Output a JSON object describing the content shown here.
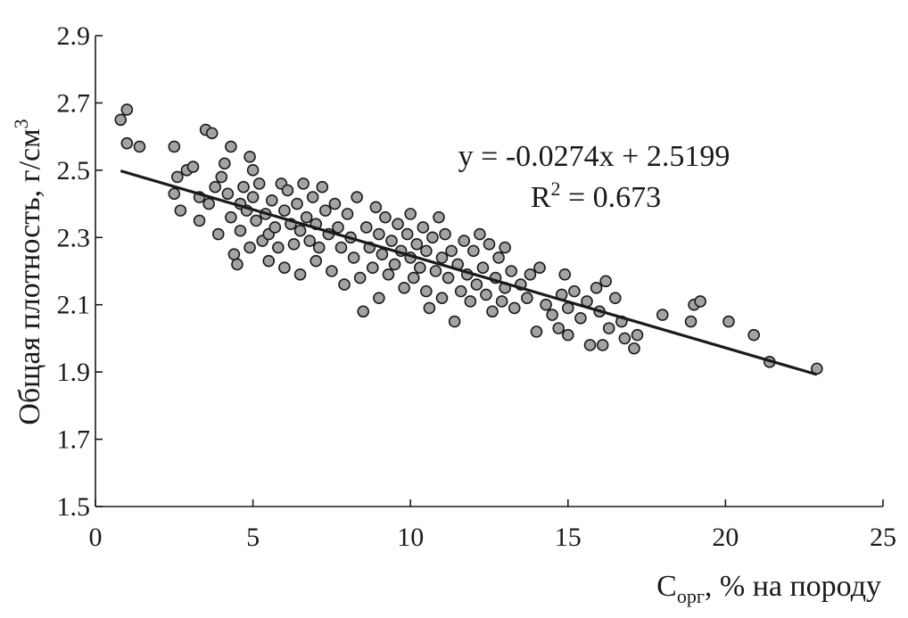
{
  "chart_data": {
    "type": "scatter",
    "xlabel_main": "C",
    "xlabel_sub": "орг",
    "xlabel_rest": ", % на породу",
    "ylabel": "Общая плотность, г/см",
    "ylabel_sup": "3",
    "xlim": [
      0,
      25
    ],
    "ylim": [
      1.5,
      2.9
    ],
    "xticks": [
      0,
      5,
      10,
      15,
      20,
      25
    ],
    "xtick_labels": [
      "0",
      "5",
      "10",
      "15",
      "20",
      "25"
    ],
    "yticks": [
      1.5,
      1.7,
      1.9,
      2.1,
      2.3,
      2.5,
      2.7,
      2.9
    ],
    "ytick_labels": [
      "1.5",
      "1.7",
      "1.9",
      "2.1",
      "2.3",
      "2.5",
      "2.7",
      "2.9"
    ],
    "trendline": {
      "slope": -0.0274,
      "intercept": 2.5199,
      "x_range": [
        0.8,
        22.9
      ]
    },
    "equation_label": "y = -0.0274x + 2.5199",
    "r2_prefix": "R",
    "r2_sup": "2",
    "r2_suffix": " = 0.673",
    "grid": false,
    "legend": "none",
    "marker_color": "#a3a3a3",
    "marker_edge_color": "#1a1a1a",
    "series": [
      {
        "points": [
          [
            0.8,
            2.65
          ],
          [
            1.0,
            2.68
          ],
          [
            1.0,
            2.58
          ],
          [
            1.4,
            2.57
          ],
          [
            2.5,
            2.57
          ],
          [
            2.5,
            2.43
          ],
          [
            2.6,
            2.48
          ],
          [
            2.7,
            2.38
          ],
          [
            2.9,
            2.5
          ],
          [
            3.1,
            2.51
          ],
          [
            3.3,
            2.42
          ],
          [
            3.3,
            2.35
          ],
          [
            3.5,
            2.62
          ],
          [
            3.6,
            2.4
          ],
          [
            3.7,
            2.61
          ],
          [
            3.8,
            2.45
          ],
          [
            3.9,
            2.31
          ],
          [
            4.0,
            2.48
          ],
          [
            4.1,
            2.52
          ],
          [
            4.2,
            2.43
          ],
          [
            4.3,
            2.57
          ],
          [
            4.3,
            2.36
          ],
          [
            4.4,
            2.25
          ],
          [
            4.5,
            2.22
          ],
          [
            4.6,
            2.4
          ],
          [
            4.6,
            2.32
          ],
          [
            4.7,
            2.45
          ],
          [
            4.8,
            2.38
          ],
          [
            4.9,
            2.54
          ],
          [
            4.9,
            2.27
          ],
          [
            5.0,
            2.5
          ],
          [
            5.0,
            2.42
          ],
          [
            5.1,
            2.35
          ],
          [
            5.2,
            2.46
          ],
          [
            5.3,
            2.29
          ],
          [
            5.4,
            2.37
          ],
          [
            5.5,
            2.31
          ],
          [
            5.5,
            2.23
          ],
          [
            5.6,
            2.41
          ],
          [
            5.7,
            2.33
          ],
          [
            5.8,
            2.27
          ],
          [
            5.9,
            2.46
          ],
          [
            6.0,
            2.38
          ],
          [
            6.0,
            2.21
          ],
          [
            6.1,
            2.44
          ],
          [
            6.2,
            2.34
          ],
          [
            6.3,
            2.28
          ],
          [
            6.4,
            2.4
          ],
          [
            6.5,
            2.32
          ],
          [
            6.5,
            2.19
          ],
          [
            6.6,
            2.46
          ],
          [
            6.7,
            2.36
          ],
          [
            6.8,
            2.29
          ],
          [
            6.9,
            2.42
          ],
          [
            7.0,
            2.34
          ],
          [
            7.0,
            2.23
          ],
          [
            7.1,
            2.27
          ],
          [
            7.2,
            2.45
          ],
          [
            7.3,
            2.38
          ],
          [
            7.4,
            2.31
          ],
          [
            7.5,
            2.2
          ],
          [
            7.6,
            2.4
          ],
          [
            7.7,
            2.33
          ],
          [
            7.8,
            2.27
          ],
          [
            7.9,
            2.16
          ],
          [
            8.0,
            2.37
          ],
          [
            8.1,
            2.3
          ],
          [
            8.2,
            2.24
          ],
          [
            8.3,
            2.42
          ],
          [
            8.4,
            2.18
          ],
          [
            8.5,
            2.08
          ],
          [
            8.6,
            2.33
          ],
          [
            8.7,
            2.27
          ],
          [
            8.8,
            2.21
          ],
          [
            8.9,
            2.39
          ],
          [
            9.0,
            2.31
          ],
          [
            9.0,
            2.12
          ],
          [
            9.1,
            2.25
          ],
          [
            9.2,
            2.36
          ],
          [
            9.3,
            2.19
          ],
          [
            9.4,
            2.29
          ],
          [
            9.5,
            2.22
          ],
          [
            9.6,
            2.34
          ],
          [
            9.7,
            2.26
          ],
          [
            9.8,
            2.15
          ],
          [
            9.9,
            2.31
          ],
          [
            10.0,
            2.24
          ],
          [
            10.0,
            2.37
          ],
          [
            10.1,
            2.18
          ],
          [
            10.2,
            2.28
          ],
          [
            10.3,
            2.21
          ],
          [
            10.4,
            2.33
          ],
          [
            10.5,
            2.14
          ],
          [
            10.5,
            2.26
          ],
          [
            10.6,
            2.09
          ],
          [
            10.7,
            2.3
          ],
          [
            10.8,
            2.2
          ],
          [
            10.9,
            2.36
          ],
          [
            11.0,
            2.24
          ],
          [
            11.0,
            2.12
          ],
          [
            11.1,
            2.31
          ],
          [
            11.2,
            2.18
          ],
          [
            11.3,
            2.26
          ],
          [
            11.4,
            2.05
          ],
          [
            11.5,
            2.22
          ],
          [
            11.6,
            2.14
          ],
          [
            11.7,
            2.29
          ],
          [
            11.8,
            2.19
          ],
          [
            11.9,
            2.11
          ],
          [
            12.0,
            2.26
          ],
          [
            12.1,
            2.16
          ],
          [
            12.2,
            2.31
          ],
          [
            12.3,
            2.21
          ],
          [
            12.4,
            2.13
          ],
          [
            12.5,
            2.28
          ],
          [
            12.6,
            2.08
          ],
          [
            12.7,
            2.18
          ],
          [
            12.8,
            2.24
          ],
          [
            12.9,
            2.11
          ],
          [
            13.0,
            2.27
          ],
          [
            13.0,
            2.15
          ],
          [
            13.2,
            2.2
          ],
          [
            13.3,
            2.09
          ],
          [
            13.5,
            2.16
          ],
          [
            13.7,
            2.12
          ],
          [
            13.8,
            2.19
          ],
          [
            14.0,
            2.02
          ],
          [
            14.1,
            2.21
          ],
          [
            14.3,
            2.1
          ],
          [
            14.5,
            2.07
          ],
          [
            14.7,
            2.03
          ],
          [
            14.8,
            2.13
          ],
          [
            14.9,
            2.19
          ],
          [
            15.0,
            2.09
          ],
          [
            15.0,
            2.01
          ],
          [
            15.2,
            2.14
          ],
          [
            15.4,
            2.06
          ],
          [
            15.6,
            2.11
          ],
          [
            15.7,
            1.98
          ],
          [
            15.9,
            2.15
          ],
          [
            16.0,
            2.08
          ],
          [
            16.1,
            1.98
          ],
          [
            16.2,
            2.17
          ],
          [
            16.3,
            2.03
          ],
          [
            16.5,
            2.12
          ],
          [
            16.7,
            2.05
          ],
          [
            16.8,
            2.0
          ],
          [
            17.1,
            1.97
          ],
          [
            17.2,
            2.01
          ],
          [
            18.0,
            2.07
          ],
          [
            18.9,
            2.05
          ],
          [
            19.0,
            2.1
          ],
          [
            19.2,
            2.11
          ],
          [
            20.1,
            2.05
          ],
          [
            20.9,
            2.01
          ],
          [
            21.4,
            1.93
          ],
          [
            22.9,
            1.91
          ]
        ]
      }
    ]
  }
}
